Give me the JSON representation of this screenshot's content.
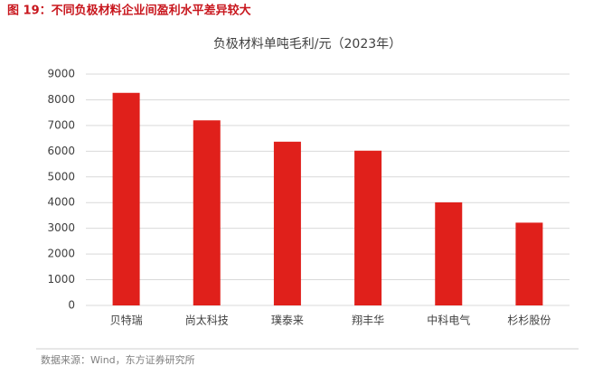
{
  "chart_data": {
    "type": "bar",
    "caption": "图 19：不同负极材料企业间盈利水平差异较大",
    "title": "负极材料单吨毛利/元（2023年）",
    "categories": [
      "贝特瑞",
      "尚太科技",
      "璞泰来",
      "翔丰华",
      "中科电气",
      "杉杉股份"
    ],
    "values": [
      8270,
      7200,
      6370,
      6020,
      4010,
      3220
    ],
    "color": "#e0201b",
    "ylim": [
      0,
      9000
    ],
    "yticks": [
      0,
      1000,
      2000,
      3000,
      4000,
      5000,
      6000,
      7000,
      8000,
      9000
    ],
    "grid": true,
    "source": "数据来源：Wind，东方证券研究所"
  }
}
